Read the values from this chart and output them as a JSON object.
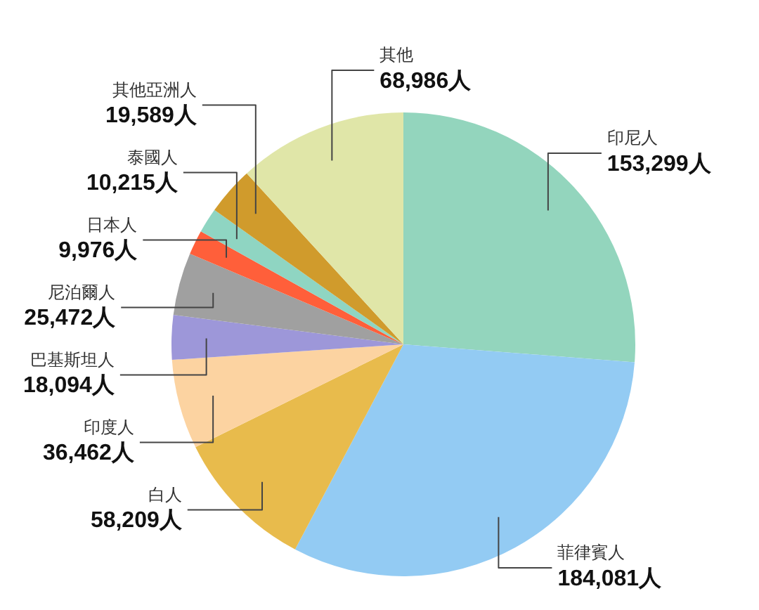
{
  "chart_data": {
    "type": "pie",
    "categories": [
      "印尼人",
      "菲律賓人",
      "白人",
      "印度人",
      "巴基斯坦人",
      "尼泊爾人",
      "日本人",
      "泰國人",
      "其他亞洲人",
      "其他"
    ],
    "values": [
      153299,
      184081,
      58209,
      36462,
      18094,
      25472,
      9976,
      10215,
      19589,
      68986
    ],
    "colors": [
      "#93d5bd",
      "#93cbf3",
      "#e8bb4c",
      "#fcd3a1",
      "#9d97d9",
      "#a0a0a0",
      "#ff5f3a",
      "#8fd5c2",
      "#d09b2c",
      "#e0e6a8"
    ],
    "value_labels": [
      "153,299人",
      "184,081人",
      "58,209人",
      "36,462人",
      "18,094人",
      "25,472人",
      "9,976人",
      "10,215人",
      "19,589人",
      "68,986人"
    ]
  }
}
